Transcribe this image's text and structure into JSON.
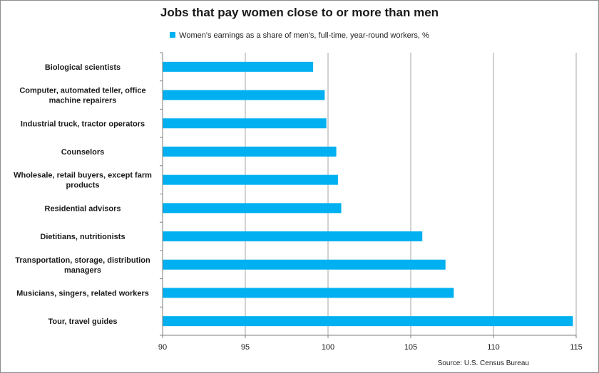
{
  "chart_data": {
    "type": "bar",
    "orientation": "horizontal",
    "title": "Jobs that pay women close to or more than men",
    "categories": [
      [
        "Biological scientists"
      ],
      [
        "Computer, automated teller, office",
        "machine repairers"
      ],
      [
        "Industrial truck, tractor operators"
      ],
      [
        "Counselors"
      ],
      [
        "Wholesale, retail buyers, except farm",
        "products"
      ],
      [
        "Residential advisors"
      ],
      [
        "Dietitians, nutritionists"
      ],
      [
        "Transportation, storage, distribution",
        "managers"
      ],
      [
        "Musicians, singers, related workers"
      ],
      [
        "Tour, travel guides"
      ]
    ],
    "series": [
      {
        "name": "Women's earnings as a share of men's, full-time, year-round workers, %",
        "values": [
          99.1,
          99.8,
          99.9,
          100.5,
          100.6,
          100.8,
          105.7,
          107.1,
          107.6,
          114.8
        ]
      }
    ],
    "xlim": [
      90,
      115
    ],
    "xticks": [
      "90",
      "95",
      "100",
      "105",
      "110",
      "115"
    ],
    "xlabel": "",
    "ylabel": "",
    "grid": "vertical",
    "legend_position": "top",
    "bar_color": "#00b0f0",
    "source": "Source: U.S. Census Bureau"
  }
}
